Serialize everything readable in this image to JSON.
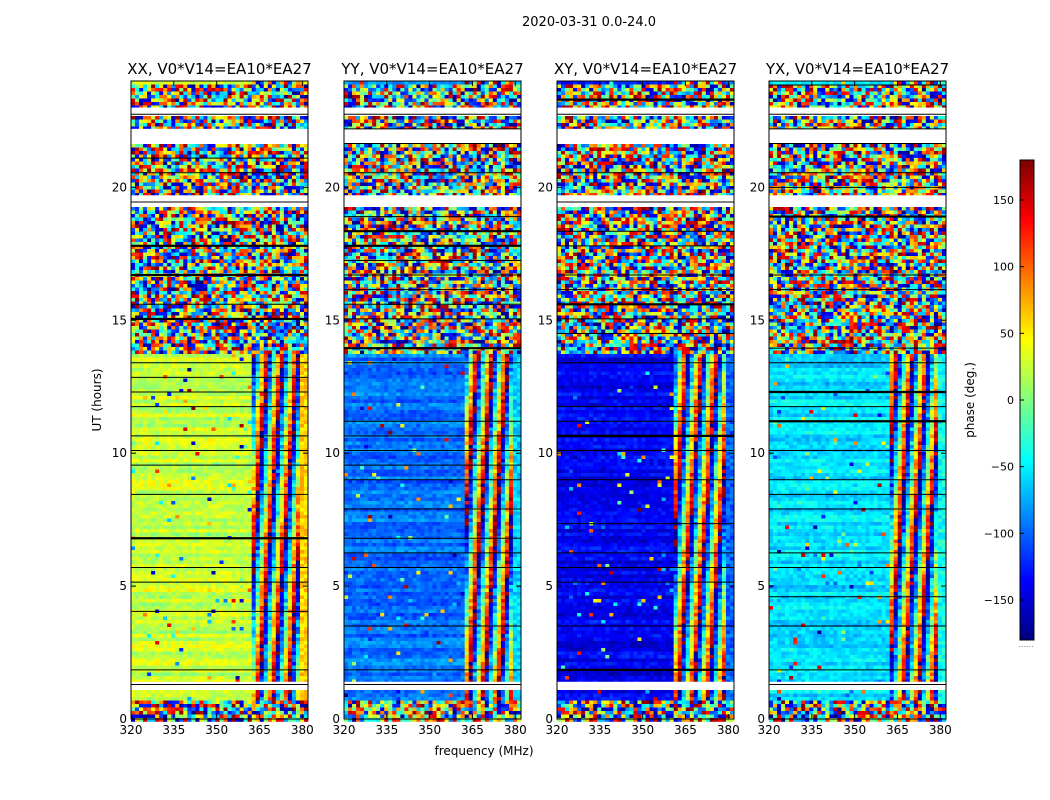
{
  "figure": {
    "suptitle": "2020-03-31 0.0-24.0",
    "xlabel": "frequency (MHz)",
    "ylabel": "UT (hours)"
  },
  "chart_data": {
    "type": "heatmap",
    "xlim": [
      320,
      382
    ],
    "ylim": [
      0,
      24
    ],
    "xticks": [
      320,
      335,
      350,
      365,
      380
    ],
    "yticks": [
      0,
      5,
      10,
      15,
      20
    ],
    "panels": [
      {
        "title": "XX, V0*V14=EA10*EA27",
        "pol": "XX",
        "base_phase_deg": 25,
        "edge_phase_deg": 60,
        "rfi_start_mhz": 362
      },
      {
        "title": "YY, V0*V14=EA10*EA27",
        "pol": "YY",
        "base_phase_deg": -95,
        "edge_phase_deg": -60,
        "rfi_start_mhz": 362
      },
      {
        "title": "XY, V0*V14=EA10*EA27",
        "pol": "XY",
        "base_phase_deg": -140,
        "edge_phase_deg": -100,
        "rfi_start_mhz": 360
      },
      {
        "title": "YX, V0*V14=EA10*EA27",
        "pol": "YX",
        "base_phase_deg": -55,
        "edge_phase_deg": -40,
        "rfi_start_mhz": 362
      }
    ],
    "noisy_hours": [
      [
        0,
        0.8
      ],
      [
        13.8,
        24
      ]
    ],
    "flagged_gaps_hours": [
      [
        1.1,
        1.4
      ],
      [
        19.3,
        19.7
      ],
      [
        21.7,
        22.2
      ],
      [
        22.8,
        23.0
      ]
    ],
    "colorbar": {
      "label": "phase (deg.)",
      "vmin": -180,
      "vmax": 180,
      "ticks": [
        -150,
        -100,
        -50,
        0,
        50,
        100,
        150
      ],
      "tick_labels": [
        "−150",
        "−100",
        "−50",
        "0",
        "50",
        "100",
        "150"
      ],
      "colormap": "jet",
      "caption": "......"
    }
  }
}
